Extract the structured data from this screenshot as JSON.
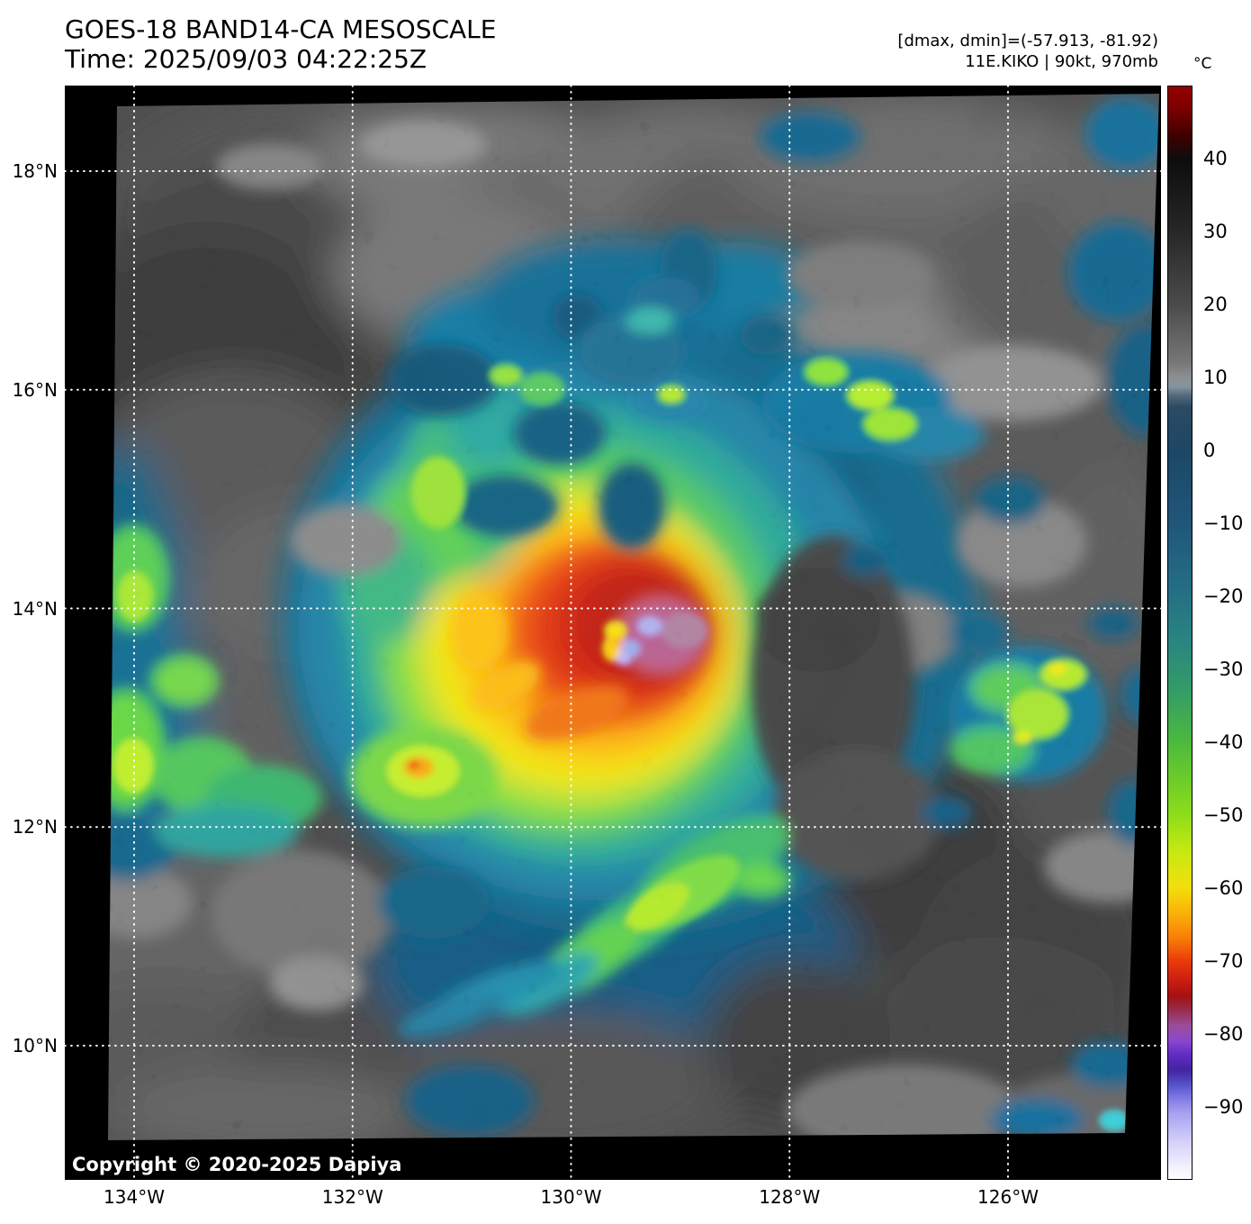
{
  "header": {
    "title_line1": "GOES-18 BAND14-CA MESOSCALE",
    "title_line2": "Time: 2025/09/03 04:22:25Z",
    "annotation_line1": "[dmax, dmin]=(-57.913, -81.92)",
    "annotation_line2": "11E.KIKO | 90kt, 970mb"
  },
  "storm": {
    "id": "11E",
    "name": "KIKO",
    "intensity_kt": "90kt",
    "pressure_mb": "970mb",
    "dmax_c": -57.913,
    "dmin_c": -81.92
  },
  "map": {
    "copyright": "Copyright © 2020-2025 Dapiya",
    "satellite": "GOES-18",
    "band": "BAND14-CA",
    "sector": "MESOSCALE"
  },
  "axes": {
    "lat_ticks": [
      {
        "label": "18°N",
        "deg": 18
      },
      {
        "label": "16°N",
        "deg": 16
      },
      {
        "label": "14°N",
        "deg": 14
      },
      {
        "label": "12°N",
        "deg": 12
      },
      {
        "label": "10°N",
        "deg": 10
      }
    ],
    "lon_ticks": [
      {
        "label": "134°W",
        "deg": 134
      },
      {
        "label": "132°W",
        "deg": 132
      },
      {
        "label": "130°W",
        "deg": 130
      },
      {
        "label": "128°W",
        "deg": 128
      },
      {
        "label": "126°W",
        "deg": 126
      }
    ]
  },
  "colorbar": {
    "unit_label": "°C",
    "ticks": [
      {
        "label": "40",
        "value": 40
      },
      {
        "label": "30",
        "value": 30
      },
      {
        "label": "20",
        "value": 20
      },
      {
        "label": "10",
        "value": 10
      },
      {
        "label": "0",
        "value": 0
      },
      {
        "label": "−10",
        "value": -10
      },
      {
        "label": "−20",
        "value": -20
      },
      {
        "label": "−30",
        "value": -30
      },
      {
        "label": "−40",
        "value": -40
      },
      {
        "label": "−50",
        "value": -50
      },
      {
        "label": "−60",
        "value": -60
      },
      {
        "label": "−70",
        "value": -70
      },
      {
        "label": "−80",
        "value": -80
      },
      {
        "label": "−90",
        "value": -90
      }
    ],
    "stops": [
      {
        "f": 0.0,
        "c": "#930000"
      },
      {
        "f": 0.02,
        "c": "#7d0000"
      },
      {
        "f": 0.045,
        "c": "#3f0000"
      },
      {
        "f": 0.067,
        "c": "#0d0d0d"
      },
      {
        "f": 0.133,
        "c": "#272727"
      },
      {
        "f": 0.2,
        "c": "#4b4b4b"
      },
      {
        "f": 0.253,
        "c": "#777777"
      },
      {
        "f": 0.267,
        "c": "#8e9092"
      },
      {
        "f": 0.275,
        "c": "#8294a1"
      },
      {
        "f": 0.283,
        "c": "#54697c"
      },
      {
        "f": 0.293,
        "c": "#2c4a64"
      },
      {
        "f": 0.333,
        "c": "#1c4765"
      },
      {
        "f": 0.4,
        "c": "#20567a"
      },
      {
        "f": 0.467,
        "c": "#257085"
      },
      {
        "f": 0.51,
        "c": "#2a8680"
      },
      {
        "f": 0.553,
        "c": "#339c66"
      },
      {
        "f": 0.6,
        "c": "#4cb93e"
      },
      {
        "f": 0.647,
        "c": "#79d323"
      },
      {
        "f": 0.667,
        "c": "#8edd1a"
      },
      {
        "f": 0.7,
        "c": "#c6e910"
      },
      {
        "f": 0.733,
        "c": "#f2df0b"
      },
      {
        "f": 0.757,
        "c": "#fbb108"
      },
      {
        "f": 0.78,
        "c": "#f97c06"
      },
      {
        "f": 0.8,
        "c": "#ea3c0a"
      },
      {
        "f": 0.82,
        "c": "#c81b10"
      },
      {
        "f": 0.833,
        "c": "#a31111"
      },
      {
        "f": 0.847,
        "c": "#973056"
      },
      {
        "f": 0.86,
        "c": "#9b4d9b"
      },
      {
        "f": 0.873,
        "c": "#8a48cc"
      },
      {
        "f": 0.887,
        "c": "#5f2bc4"
      },
      {
        "f": 0.9,
        "c": "#44239f"
      },
      {
        "f": 0.913,
        "c": "#5150c8"
      },
      {
        "f": 0.927,
        "c": "#837ee5"
      },
      {
        "f": 0.94,
        "c": "#a8a2f0"
      },
      {
        "f": 0.967,
        "c": "#d6d2f9"
      },
      {
        "f": 1.0,
        "c": "#ffffff"
      }
    ]
  }
}
